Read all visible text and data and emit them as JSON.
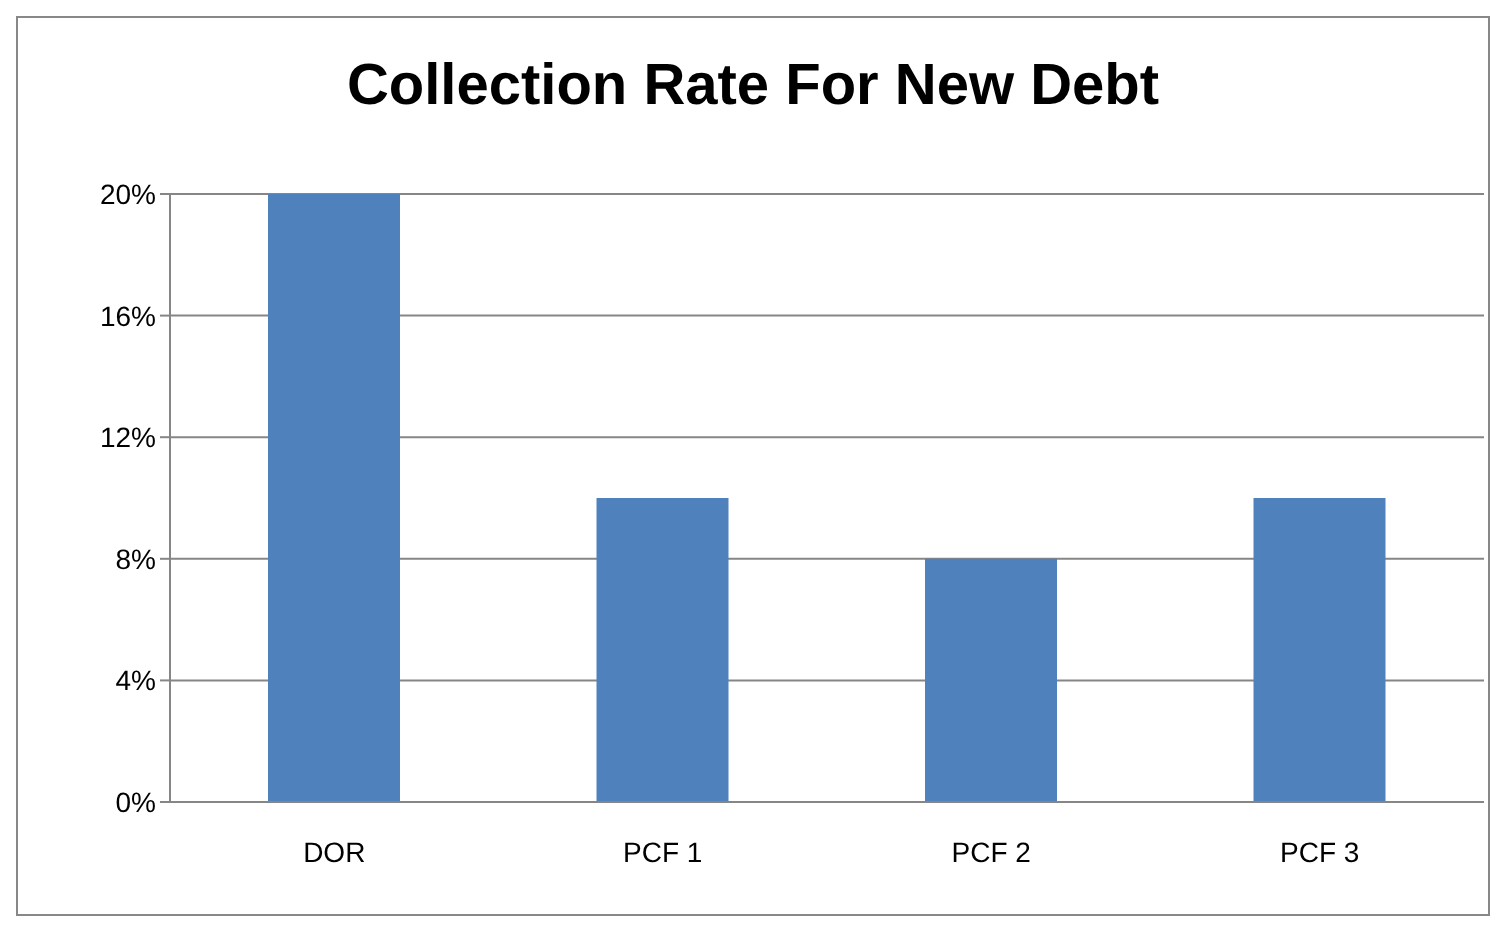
{
  "chart_data": {
    "type": "bar",
    "title": "Collection Rate For New Debt",
    "categories": [
      "DOR",
      "PCF 1",
      "PCF 2",
      "PCF 3"
    ],
    "values": [
      20,
      10,
      8,
      10
    ],
    "color": "#4f81bd",
    "ylim": [
      0,
      20
    ],
    "yticks": [
      {
        "value": 0,
        "label": "0%"
      },
      {
        "value": 4,
        "label": "4%"
      },
      {
        "value": 8,
        "label": "8%"
      },
      {
        "value": 12,
        "label": "12%"
      },
      {
        "value": 16,
        "label": "16%"
      },
      {
        "value": 20,
        "label": "20%"
      }
    ],
    "grid": "y"
  }
}
